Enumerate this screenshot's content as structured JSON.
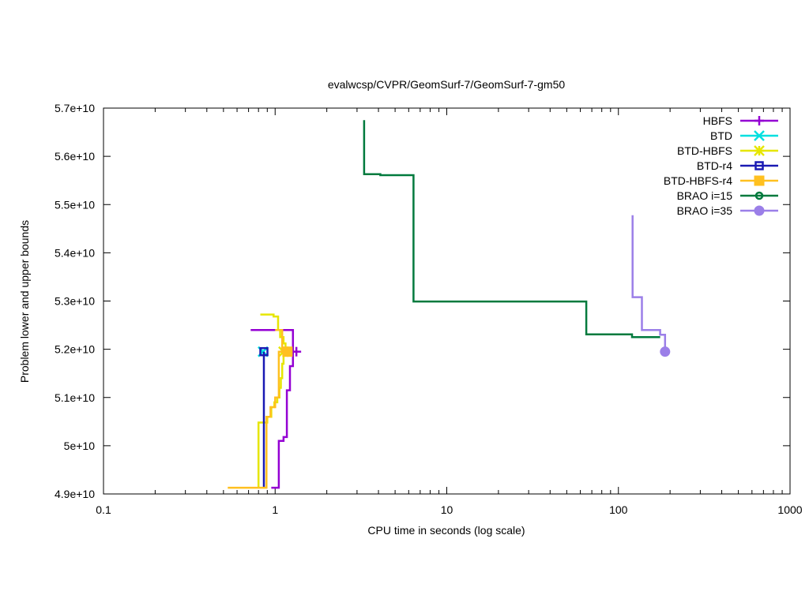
{
  "chart_data": {
    "type": "line",
    "title": "evalwcsp/CVPR/GeomSurf-7/GeomSurf-7-gm50",
    "xlabel": "CPU time in seconds (log scale)",
    "ylabel": "Problem lower and upper bounds",
    "x_scale": "log",
    "xlim": [
      0.1,
      1000
    ],
    "ylim": [
      49000000000.0,
      57000000000.0
    ],
    "x_ticks": [
      0.1,
      1,
      10,
      100,
      1000
    ],
    "x_tick_labels": [
      "0.1",
      "1",
      "10",
      "100",
      "1000"
    ],
    "y_ticks": [
      49000000000.0,
      50000000000.0,
      51000000000.0,
      52000000000.0,
      53000000000.0,
      54000000000.0,
      55000000000.0,
      56000000000.0,
      57000000000.0
    ],
    "y_tick_labels": [
      "4.9e+10",
      "5e+10",
      "5.1e+10",
      "5.2e+10",
      "5.3e+10",
      "5.4e+10",
      "5.5e+10",
      "5.6e+10",
      "5.7e+10"
    ],
    "grid": false,
    "legend_position": "top-right",
    "series": [
      {
        "name": "HBFS",
        "color": "#9400d3",
        "marker": "plus",
        "segments": [
          [
            [
              0.72,
              52400000000.0
            ],
            [
              1.27,
              52400000000.0
            ],
            [
              1.27,
              51950000000.0
            ]
          ],
          [
            [
              0.95,
              49130000000.0
            ],
            [
              1.05,
              49130000000.0
            ],
            [
              1.05,
              50100000000.0
            ],
            [
              1.12,
              50100000000.0
            ],
            [
              1.12,
              50180000000.0
            ],
            [
              1.17,
              50180000000.0
            ],
            [
              1.17,
              51150000000.0
            ],
            [
              1.22,
              51150000000.0
            ],
            [
              1.22,
              51650000000.0
            ],
            [
              1.27,
              51650000000.0
            ],
            [
              1.27,
              51950000000.0
            ]
          ]
        ],
        "marker_points": [
          [
            1.33,
            51950000000.0
          ]
        ]
      },
      {
        "name": "BTD",
        "color": "#00e0e0",
        "marker": "cross",
        "segments": [],
        "marker_points": [
          [
            0.85,
            51950000000.0
          ]
        ]
      },
      {
        "name": "BTD-HBFS",
        "color": "#e6e600",
        "marker": "star",
        "segments": [
          [
            [
              0.82,
              52720000000.0
            ],
            [
              0.98,
              52720000000.0
            ],
            [
              0.98,
              52680000000.0
            ],
            [
              1.04,
              52680000000.0
            ],
            [
              1.04,
              52400000000.0
            ],
            [
              1.07,
              52400000000.0
            ],
            [
              1.07,
              52250000000.0
            ],
            [
              1.12,
              52250000000.0
            ],
            [
              1.12,
              52120000000.0
            ],
            [
              1.15,
              52120000000.0
            ],
            [
              1.15,
              51950000000.0
            ]
          ],
          [
            [
              0.8,
              49130000000.0
            ],
            [
              0.8,
              50480000000.0
            ],
            [
              0.9,
              50480000000.0
            ],
            [
              0.9,
              50600000000.0
            ],
            [
              0.95,
              50600000000.0
            ],
            [
              0.95,
              50800000000.0
            ],
            [
              0.99,
              50800000000.0
            ],
            [
              0.99,
              50900000000.0
            ],
            [
              1.03,
              50900000000.0
            ],
            [
              1.03,
              51000000000.0
            ],
            [
              1.06,
              51000000000.0
            ],
            [
              1.06,
              51200000000.0
            ],
            [
              1.08,
              51200000000.0
            ],
            [
              1.08,
              51400000000.0
            ],
            [
              1.1,
              51400000000.0
            ],
            [
              1.1,
              51700000000.0
            ],
            [
              1.12,
              51700000000.0
            ],
            [
              1.12,
              51950000000.0
            ]
          ]
        ],
        "marker_points": [
          [
            1.12,
            51950000000.0
          ]
        ]
      },
      {
        "name": "BTD-r4",
        "color": "#1a1ab3",
        "marker": "square-open",
        "segments": [
          [
            [
              0.86,
              49130000000.0
            ],
            [
              0.86,
              51950000000.0
            ]
          ]
        ],
        "marker_points": [
          [
            0.86,
            51950000000.0
          ]
        ]
      },
      {
        "name": "BTD-HBFS-r4",
        "color": "#ffc020",
        "marker": "square-filled",
        "segments": [
          [
            [
              0.53,
              49130000000.0
            ],
            [
              0.89,
              49130000000.0
            ],
            [
              0.89,
              50600000000.0
            ],
            [
              0.94,
              50600000000.0
            ],
            [
              0.94,
              50800000000.0
            ],
            [
              1.0,
              50800000000.0
            ],
            [
              1.0,
              51000000000.0
            ],
            [
              1.05,
              51000000000.0
            ],
            [
              1.05,
              51950000000.0
            ],
            [
              1.2,
              51950000000.0
            ]
          ],
          [
            [
              1.0,
              52400000000.0
            ],
            [
              1.1,
              52400000000.0
            ],
            [
              1.1,
              51950000000.0
            ]
          ]
        ],
        "marker_points": [
          [
            1.18,
            51950000000.0
          ]
        ]
      },
      {
        "name": "BRAO i=15",
        "color": "#007a3d",
        "marker": "circle-open",
        "segments": [
          [
            [
              3.3,
              56750000000.0
            ],
            [
              3.3,
              55630000000.0
            ],
            [
              4.1,
              55630000000.0
            ],
            [
              4.1,
              55610000000.0
            ],
            [
              6.4,
              55610000000.0
            ],
            [
              6.4,
              52990000000.0
            ],
            [
              65,
              52990000000.0
            ],
            [
              65,
              52310000000.0
            ],
            [
              120,
              52310000000.0
            ],
            [
              120,
              52250000000.0
            ],
            [
              175,
              52250000000.0
            ]
          ]
        ],
        "marker_points": []
      },
      {
        "name": "BRAO i=35",
        "color": "#9b7fe8",
        "marker": "circle-filled",
        "segments": [
          [
            [
              121,
              54780000000.0
            ],
            [
              121,
              53080000000.0
            ],
            [
              137,
              53080000000.0
            ],
            [
              137,
              52400000000.0
            ],
            [
              175,
              52400000000.0
            ],
            [
              175,
              52300000000.0
            ],
            [
              187,
              52300000000.0
            ],
            [
              187,
              51950000000.0
            ]
          ]
        ],
        "marker_points": [
          [
            187,
            51950000000.0
          ]
        ]
      }
    ]
  }
}
